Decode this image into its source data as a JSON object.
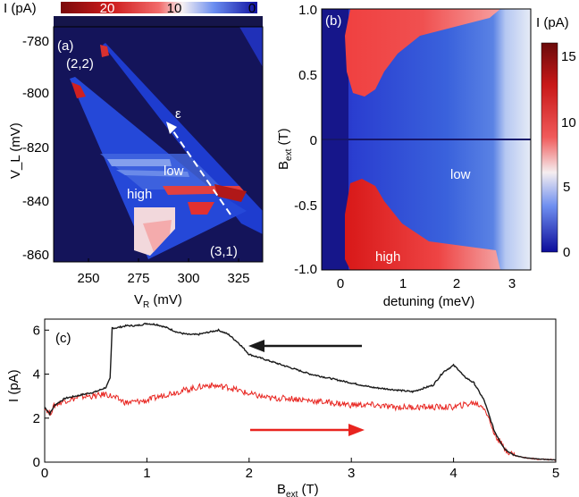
{
  "figure": {
    "panel_a": {
      "label": "(a)",
      "colorbar": {
        "label": "I (pA)",
        "ticks": [
          "20",
          "10",
          "0"
        ]
      },
      "xlabel_main": "V",
      "xlabel_sub": "R",
      "xlabel_unit": " (mV)",
      "ylabel": "V_L (mV)",
      "xticks": [
        "250",
        "275",
        "300",
        "325"
      ],
      "yticks": [
        "-780",
        "-800",
        "-820",
        "-840",
        "-860"
      ],
      "annotations": {
        "state_22": "(2,2)",
        "state_31": "(3,1)",
        "low": "low",
        "high": "high",
        "epsilon": "ε"
      }
    },
    "panel_b": {
      "label": "(b)",
      "colorbar": {
        "label": "I (pA)",
        "ticks": [
          "15",
          "10",
          "5",
          "0"
        ]
      },
      "xlabel": "detuning (meV)",
      "ylabel_main": "B",
      "ylabel_sub": "ext",
      "ylabel_unit": " (T)",
      "xticks": [
        "0",
        "1",
        "2",
        "3"
      ],
      "yticks": [
        "1.0",
        "0.5",
        "0",
        "-0.5",
        "-1.0"
      ],
      "annotations": {
        "low": "low",
        "high": "high"
      }
    },
    "panel_c": {
      "label": "(c)",
      "xlabel_main": "B",
      "xlabel_sub": "ext",
      "xlabel_unit": " (T)",
      "ylabel": "I (pA)",
      "xticks": [
        "0",
        "1",
        "2",
        "3",
        "4",
        "5"
      ],
      "yticks": [
        "0",
        "2",
        "4",
        "6"
      ]
    }
  },
  "chart_data": {
    "type": "line",
    "xlabel": "B_ext (T)",
    "ylabel": "I (pA)",
    "xlim": [
      0,
      5
    ],
    "ylim": [
      0,
      6.5
    ],
    "series": [
      {
        "color": "#1a1a1a",
        "x": [
          0,
          0.05,
          0.1,
          0.2,
          0.3,
          0.4,
          0.5,
          0.6,
          0.64,
          0.66,
          0.7,
          0.8,
          0.9,
          1.0,
          1.1,
          1.2,
          1.3,
          1.4,
          1.5,
          1.6,
          1.7,
          1.8,
          1.9,
          2.0,
          2.2,
          2.4,
          2.6,
          2.8,
          3.0,
          3.2,
          3.4,
          3.6,
          3.8,
          3.9,
          4.0,
          4.05,
          4.1,
          4.2,
          4.3,
          4.4,
          4.5,
          4.6,
          4.7,
          4.8,
          5.0
        ],
        "values": [
          2.5,
          2.2,
          2.6,
          2.9,
          3.0,
          3.1,
          3.2,
          3.4,
          3.8,
          6.1,
          6.1,
          6.2,
          6.2,
          6.3,
          6.25,
          6.1,
          5.9,
          5.8,
          5.8,
          5.9,
          6.0,
          5.8,
          5.4,
          4.9,
          4.6,
          4.3,
          4.0,
          3.8,
          3.6,
          3.4,
          3.3,
          3.2,
          3.5,
          4.1,
          4.4,
          4.2,
          3.9,
          3.6,
          2.8,
          1.4,
          0.6,
          0.3,
          0.2,
          0.15,
          0.1
        ]
      },
      {
        "color": "#e8241f",
        "x": [
          0,
          0.05,
          0.1,
          0.2,
          0.3,
          0.4,
          0.5,
          0.6,
          0.7,
          0.8,
          1.0,
          1.2,
          1.4,
          1.6,
          1.8,
          2.0,
          2.2,
          2.4,
          2.6,
          2.8,
          3.0,
          3.2,
          3.4,
          3.6,
          3.8,
          4.0,
          4.1,
          4.2,
          4.3,
          4.4,
          4.5,
          4.6,
          4.7,
          4.8,
          5.0
        ],
        "values": [
          2.5,
          2.2,
          2.6,
          2.8,
          2.9,
          3.0,
          3.0,
          3.1,
          2.9,
          2.7,
          2.8,
          3.1,
          3.3,
          3.5,
          3.4,
          3.1,
          2.9,
          2.9,
          2.8,
          2.7,
          2.6,
          2.6,
          2.5,
          2.5,
          2.5,
          2.5,
          2.6,
          2.7,
          2.5,
          1.3,
          0.6,
          0.3,
          0.2,
          0.15,
          0.1
        ]
      }
    ]
  }
}
